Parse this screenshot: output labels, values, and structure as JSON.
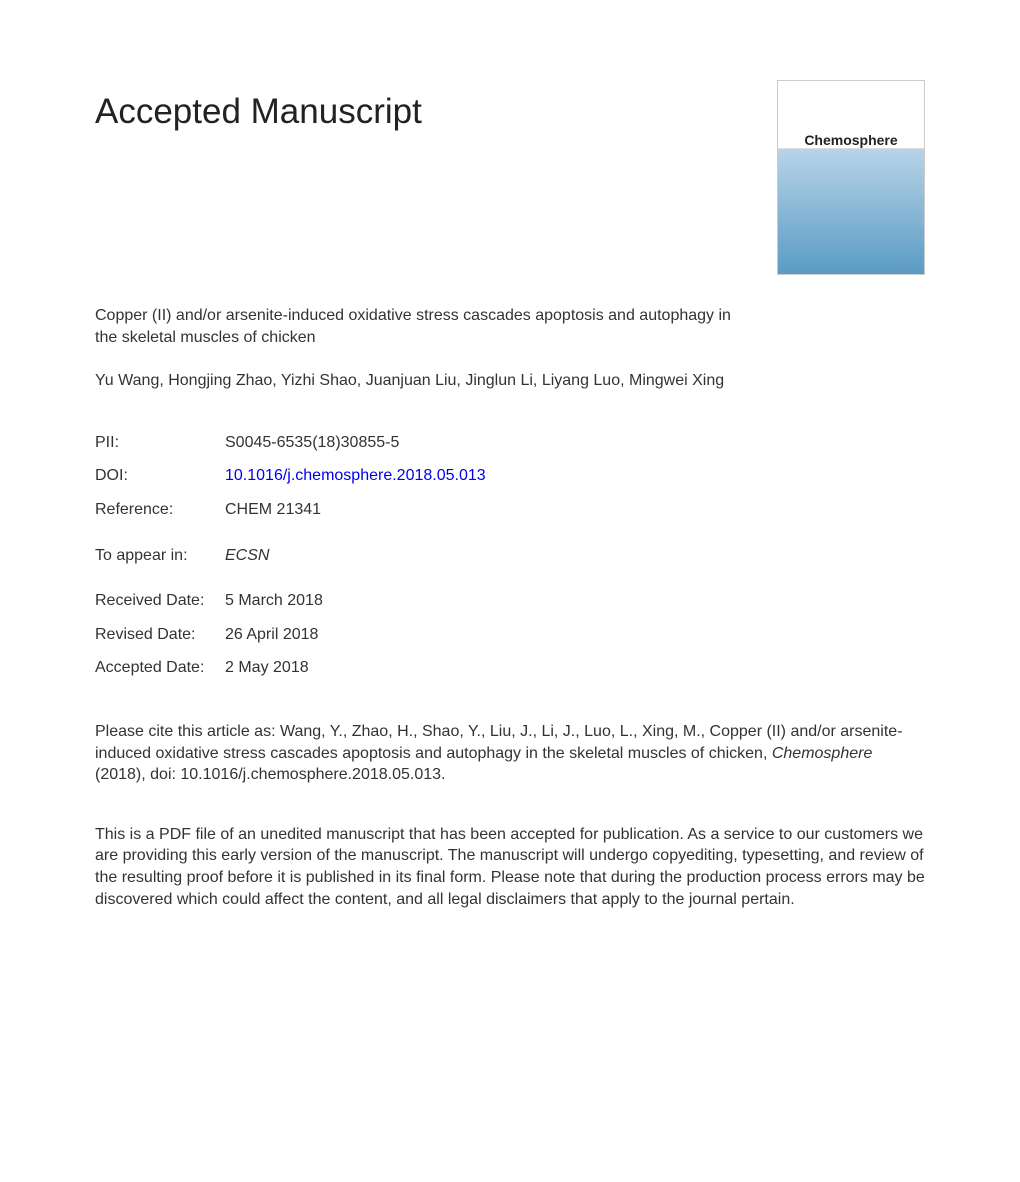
{
  "heading": "Accepted Manuscript",
  "journal_cover": {
    "title": "Chemosphere",
    "background_top": "#ffffff",
    "background_bottom_start": "#b8d4e8",
    "background_bottom_end": "#5a9bc4",
    "title_color": "#222222",
    "title_fontsize": 14
  },
  "article_title": "Copper (II) and/or arsenite-induced oxidative stress cascades apoptosis and autophagy in the skeletal muscles of chicken",
  "authors": "Yu Wang, Hongjing Zhao, Yizhi Shao, Juanjuan Liu, Jinglun Li, Liyang Luo, Mingwei Xing",
  "meta": {
    "pii": {
      "label": "PII:",
      "value": "S0045-6535(18)30855-5"
    },
    "doi": {
      "label": "DOI:",
      "value": "10.1016/j.chemosphere.2018.05.013"
    },
    "reference": {
      "label": "Reference:",
      "value": "CHEM 21341"
    },
    "to_appear": {
      "label": "To appear in:",
      "value": "ECSN"
    },
    "received": {
      "label": "Received Date:",
      "value": "5 March 2018"
    },
    "revised": {
      "label": "Revised Date:",
      "value": "26 April 2018"
    },
    "accepted": {
      "label": "Accepted Date:",
      "value": "2 May 2018"
    }
  },
  "citation": {
    "prefix": "Please cite this article as: Wang, Y., Zhao, H., Shao, Y., Liu, J., Li, J., Luo, L., Xing, M., Copper (II) and/or arsenite-induced oxidative stress cascades apoptosis and autophagy in the skeletal muscles of chicken, ",
    "journal": "Chemosphere",
    "suffix": " (2018), doi: 10.1016/j.chemosphere.2018.05.013."
  },
  "disclaimer": "This is a PDF file of an unedited manuscript that has been accepted for publication. As a service to our customers we are providing this early version of the manuscript. The manuscript will undergo copyediting, typesetting, and review of the resulting proof before it is published in its final form. Please note that during the production process errors may be discovered which could affect the content, and all legal disclaimers that apply to the journal pertain.",
  "colors": {
    "text": "#333333",
    "heading": "#222222",
    "link": "#0000ee",
    "background": "#ffffff"
  },
  "typography": {
    "heading_fontsize": 35,
    "body_fontsize": 16,
    "font_family": "Arial"
  }
}
